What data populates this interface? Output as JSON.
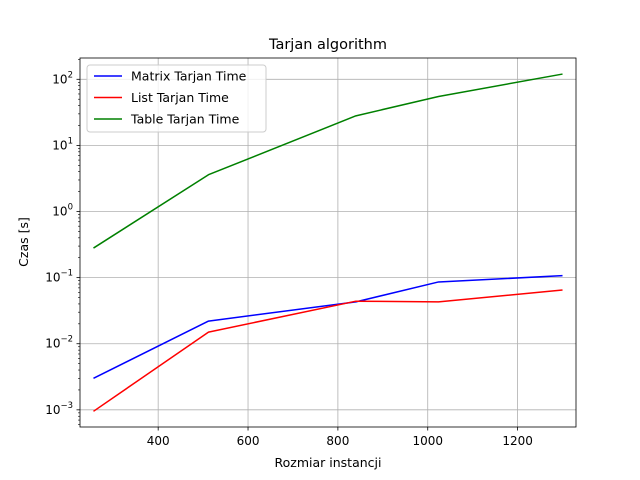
{
  "chart_data": {
    "type": "line",
    "title": "Tarjan algorithm",
    "xlabel": "Rozmiar instancji",
    "ylabel": "Czas [s]",
    "yscale": "log",
    "xlim": [
      226,
      1330
    ],
    "ylim": [
      0.00055,
      210
    ],
    "xticks": [
      400,
      600,
      800,
      1000,
      1200
    ],
    "yticks": [
      {
        "value": 0.001,
        "base": "10",
        "exp": "−3"
      },
      {
        "value": 0.01,
        "base": "10",
        "exp": "−2"
      },
      {
        "value": 0.1,
        "base": "10",
        "exp": "−1"
      },
      {
        "value": 1,
        "base": "10",
        "exp": "0"
      },
      {
        "value": 10,
        "base": "10",
        "exp": "1"
      },
      {
        "value": 100,
        "base": "10",
        "exp": "2"
      }
    ],
    "grid": true,
    "legend_position": "top-left",
    "x": [
      256,
      512,
      840,
      1024,
      1300
    ],
    "series": [
      {
        "name": "Matrix Tarjan Time",
        "color": "#0000ff",
        "values": [
          0.003,
          0.022,
          0.043,
          0.086,
          0.107
        ]
      },
      {
        "name": "List Tarjan Time",
        "color": "#ff0000",
        "values": [
          0.00095,
          0.015,
          0.044,
          0.043,
          0.065
        ]
      },
      {
        "name": "Table Tarjan Time",
        "color": "#008000",
        "values": [
          0.28,
          3.6,
          28,
          55,
          120
        ]
      }
    ]
  }
}
